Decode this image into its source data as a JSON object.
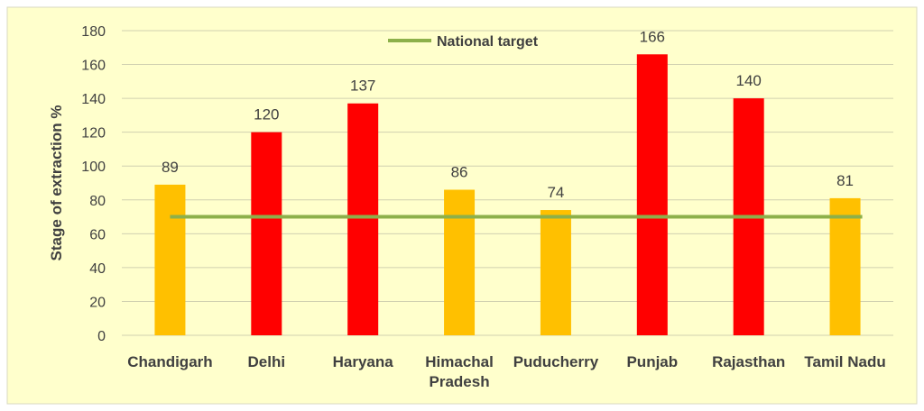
{
  "chart_data": {
    "type": "bar",
    "title": "",
    "xlabel": "",
    "ylabel": "Stage of extraction %",
    "ylim": [
      0,
      180
    ],
    "yticks": [
      0,
      20,
      40,
      60,
      80,
      100,
      120,
      140,
      160,
      180
    ],
    "grid": true,
    "legend_position": "top-center",
    "categories": [
      [
        "Chandigarh"
      ],
      [
        "Delhi"
      ],
      [
        "Haryana"
      ],
      [
        "Himachal",
        "Pradesh"
      ],
      [
        "Puducherry"
      ],
      [
        "Punjab"
      ],
      [
        "Rajasthan"
      ],
      [
        "Tamil Nadu"
      ]
    ],
    "values": [
      89,
      120,
      137,
      86,
      74,
      166,
      140,
      81
    ],
    "bar_colors": [
      "#FFC000",
      "#FF0000",
      "#FF0000",
      "#FFC000",
      "#FFC000",
      "#FF0000",
      "#FF0000",
      "#FFC000"
    ],
    "reference_line": {
      "name": "National target",
      "value": 70,
      "color": "#8DB04A"
    },
    "colors": {
      "background": "#FFFFCC",
      "gridline": "#D0D0B0",
      "text": "#404040"
    }
  }
}
